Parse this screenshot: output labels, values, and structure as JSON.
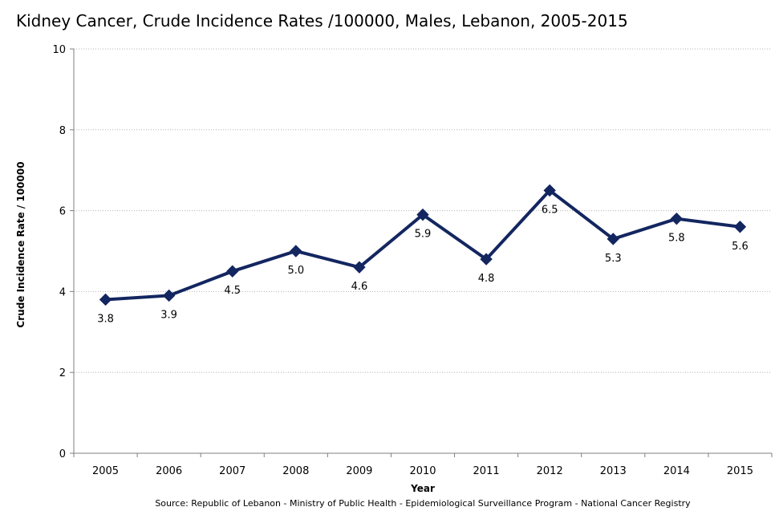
{
  "chart_data": {
    "type": "line",
    "title": "Kidney Cancer, Crude Incidence Rates /100000,   Males, Lebanon, 2005-2015",
    "xlabel": "Year",
    "ylabel": "Crude Incidence Rate / 100000",
    "categories": [
      "2005",
      "2006",
      "2007",
      "2008",
      "2009",
      "2010",
      "2011",
      "2012",
      "2013",
      "2014",
      "2015"
    ],
    "series": [
      {
        "values": [
          3.8,
          3.9,
          4.5,
          5.0,
          4.6,
          5.9,
          4.8,
          6.5,
          5.3,
          5.8,
          5.6
        ],
        "labels": [
          "3.8",
          "3.9",
          "4.5",
          "5.0",
          "4.6",
          "5.9",
          "4.8",
          "6.5",
          "5.3",
          "5.8",
          "5.6"
        ],
        "label_position": [
          "below",
          "below",
          "below",
          "below",
          "below",
          "below",
          "below",
          "below",
          "below",
          "below",
          "below"
        ],
        "color": "#132660",
        "marker": "diamond"
      }
    ],
    "ylim": [
      0,
      10
    ],
    "yticks": [
      0,
      2,
      4,
      6,
      8,
      10
    ],
    "ytick_labels": [
      "0",
      "2",
      "4",
      "6",
      "8",
      "10"
    ],
    "grid": "horizontal-dotted",
    "legend": "none"
  },
  "source": "Source:  Republic of Lebanon - Ministry of Public Health - Epidemiological Surveillance Program - National Cancer Registry",
  "colors": {
    "series": "#132660",
    "grid": "#b3b3b3",
    "axis": "#7f7f7f"
  }
}
